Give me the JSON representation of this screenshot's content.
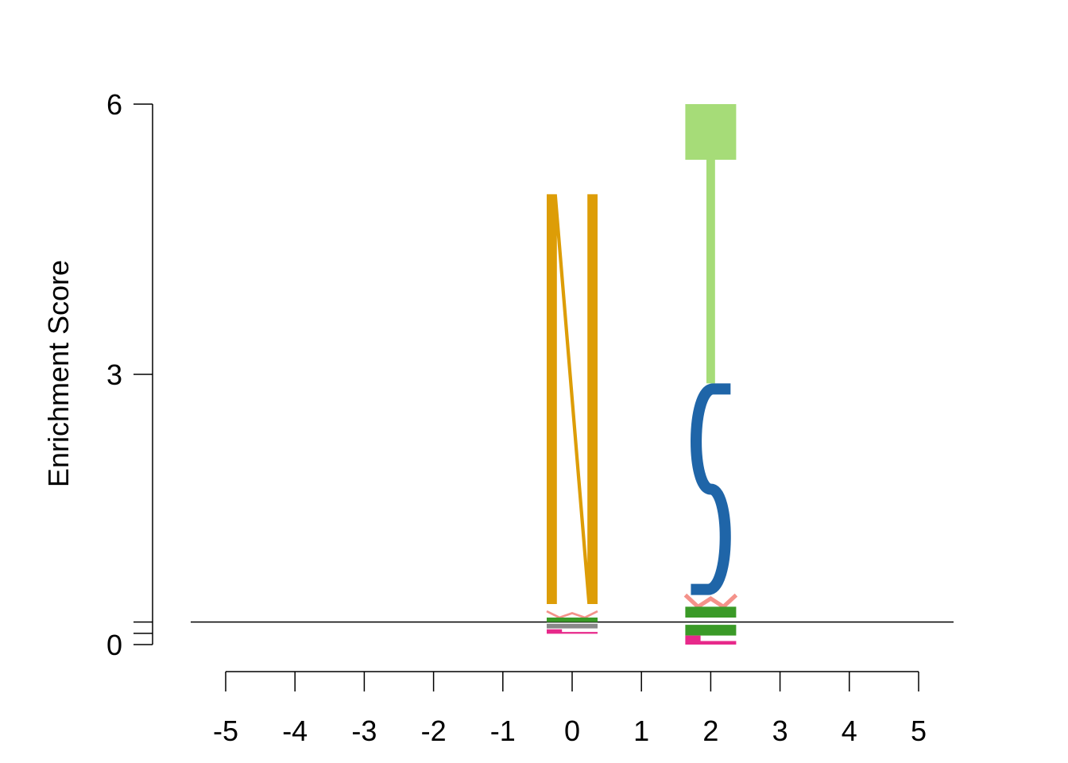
{
  "chart_data": {
    "type": "sequence-logo",
    "title": "",
    "xlabel": "",
    "ylabel": "Enrichment Score",
    "ylim": [
      0,
      6
    ],
    "y_ticks": [
      "0",
      "3",
      "6"
    ],
    "x_ticks": [
      "-5",
      "-4",
      "-3",
      "-2",
      "-1",
      "0",
      "1",
      "2",
      "3",
      "4",
      "5"
    ],
    "baseline": 0.25,
    "grid": false,
    "legend": "none",
    "colors": {
      "N": "#DD9D07",
      "S": "#1F65A8",
      "T": "#A6DC78",
      "green": "#3A9A27",
      "salmon": "#F4928A",
      "magenta": "#E7298A",
      "gray": "#888888",
      "baseline": "#000000"
    },
    "positions": [
      {
        "position": 0,
        "letters": [
          {
            "letter": "N",
            "from": 0.45,
            "to": 5.0,
            "color": "N"
          },
          {
            "letter": "W",
            "from": 0.3,
            "to": 0.37,
            "color": "salmon"
          },
          {
            "letter": "E",
            "from": 0.25,
            "to": 0.3,
            "color": "green"
          },
          {
            "letter": "I",
            "from": 0.18,
            "to": 0.23,
            "color": "gray"
          },
          {
            "letter": "L",
            "from": 0.12,
            "to": 0.17,
            "color": "magenta"
          }
        ]
      },
      {
        "position": 2,
        "letters": [
          {
            "letter": "T",
            "from": 2.9,
            "to": 6.0,
            "color": "T"
          },
          {
            "letter": "S",
            "from": 0.55,
            "to": 2.9,
            "color": "S"
          },
          {
            "letter": "W",
            "from": 0.42,
            "to": 0.55,
            "color": "salmon"
          },
          {
            "letter": "E",
            "from": 0.3,
            "to": 0.42,
            "color": "green"
          },
          {
            "letter": "I",
            "from": 0.1,
            "to": 0.22,
            "color": "green"
          },
          {
            "letter": "L",
            "from": 0.0,
            "to": 0.1,
            "color": "magenta"
          }
        ]
      }
    ]
  }
}
